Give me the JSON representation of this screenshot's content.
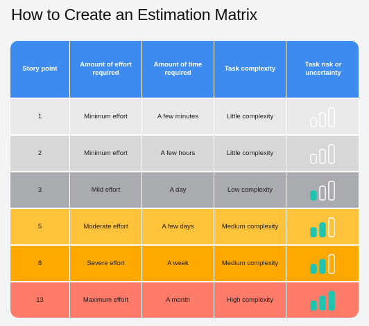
{
  "title": "How to Create an Estimation Matrix",
  "colors": {
    "header": "#3e8bf0",
    "bar_filled": "#1fc4b0",
    "bar_empty_stroke": "#ffffff",
    "bar_empty_fill": "none"
  },
  "columns": [
    "Story point",
    "Amount of effort required",
    "Amount of time required",
    "Task complexity",
    "Task risk or uncertainty"
  ],
  "rows": [
    {
      "story_point": "1",
      "effort": "Minimum effort",
      "time": "A few minutes",
      "complexity": "Little complexity",
      "risk_level": 0,
      "color": "#e9e9ea"
    },
    {
      "story_point": "2",
      "effort": "Minimum effort",
      "time": "A few hours",
      "complexity": "Little complexity",
      "risk_level": 0,
      "color": "#d7d7d9"
    },
    {
      "story_point": "3",
      "effort": "Mild effort",
      "time": "A day",
      "complexity": "Low complexity",
      "risk_level": 1,
      "color": "#a8acb1"
    },
    {
      "story_point": "5",
      "effort": "Moderate effort",
      "time": "A few days",
      "complexity": "Medium complexity",
      "risk_level": 2,
      "color": "#ffc23b"
    },
    {
      "story_point": "8",
      "effort": "Severe effort",
      "time": "A week",
      "complexity": "Medium complexity",
      "risk_level": 2,
      "color": "#ffa800"
    },
    {
      "story_point": "13",
      "effort": "Maximum effort",
      "time": "A month",
      "complexity": "High complexity",
      "risk_level": 3,
      "color": "#ff7b69"
    }
  ]
}
